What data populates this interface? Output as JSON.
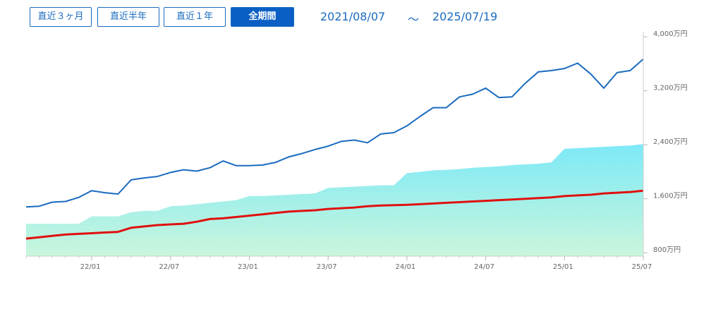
{
  "controls": {
    "buttons": [
      "直近３ヶ月",
      "直近半年",
      "直近１年",
      "全期間"
    ],
    "active": 3,
    "date_from": "2021/08/07",
    "separator": "～",
    "date_to": "2025/07/19"
  },
  "chart_data": {
    "type": "line",
    "x": [
      "21/08",
      "21/09",
      "21/10",
      "21/11",
      "21/12",
      "22/01",
      "22/02",
      "22/03",
      "22/04",
      "22/05",
      "22/06",
      "22/07",
      "22/08",
      "22/09",
      "22/10",
      "22/11",
      "22/12",
      "23/01",
      "23/02",
      "23/03",
      "23/04",
      "23/05",
      "23/06",
      "23/07",
      "23/08",
      "23/09",
      "23/10",
      "23/11",
      "23/12",
      "24/01",
      "24/02",
      "24/03",
      "24/04",
      "24/05",
      "24/06",
      "24/07",
      "24/08",
      "24/09",
      "24/10",
      "24/11",
      "24/12",
      "25/01",
      "25/02",
      "25/03",
      "25/04",
      "25/05",
      "25/06",
      "25/07"
    ],
    "series": [
      {
        "color": "#7de9f7",
        "area": true,
        "area_bottom_color": "#c9f6dc",
        "values": [
          1230,
          1230,
          1230,
          1230,
          1230,
          1340,
          1340,
          1340,
          1400,
          1420,
          1420,
          1490,
          1500,
          1520,
          1540,
          1560,
          1580,
          1640,
          1640,
          1650,
          1660,
          1670,
          1680,
          1760,
          1770,
          1780,
          1790,
          1800,
          1800,
          1980,
          2000,
          2020,
          2030,
          2040,
          2060,
          2070,
          2080,
          2100,
          2110,
          2120,
          2140,
          2340,
          2350,
          2360,
          2370,
          2380,
          2390,
          2410
        ]
      },
      {
        "color": "#e0100f",
        "values": [
          1010,
          1030,
          1050,
          1070,
          1080,
          1090,
          1100,
          1110,
          1170,
          1190,
          1210,
          1220,
          1230,
          1260,
          1300,
          1310,
          1330,
          1350,
          1370,
          1390,
          1410,
          1420,
          1430,
          1450,
          1460,
          1470,
          1490,
          1500,
          1505,
          1510,
          1520,
          1530,
          1540,
          1550,
          1560,
          1570,
          1580,
          1590,
          1600,
          1610,
          1620,
          1640,
          1650,
          1660,
          1680,
          1690,
          1700,
          1720
        ]
      },
      {
        "color": "#1a6bbf",
        "values": [
          1480,
          1490,
          1550,
          1560,
          1620,
          1720,
          1690,
          1670,
          1880,
          1910,
          1930,
          1990,
          2030,
          2010,
          2060,
          2160,
          2090,
          2090,
          2100,
          2140,
          2220,
          2270,
          2330,
          2380,
          2450,
          2470,
          2430,
          2560,
          2580,
          2680,
          2820,
          2950,
          2950,
          3110,
          3150,
          3240,
          3100,
          3110,
          3310,
          3480,
          3500,
          3530,
          3610,
          3450,
          3240,
          3470,
          3500,
          3670
        ]
      }
    ],
    "xlim": [
      "21/08",
      "25/07"
    ],
    "xticks": [
      "22/01",
      "22/07",
      "23/01",
      "23/07",
      "24/01",
      "24/07",
      "25/01",
      "25/07"
    ],
    "ylim": [
      750,
      4075
    ],
    "yticks": [
      {
        "value": 800,
        "label": "800万円"
      },
      {
        "value": 1600,
        "label": "1,600万円"
      },
      {
        "value": 2400,
        "label": "2,400万円"
      },
      {
        "value": 3200,
        "label": "3,200万円"
      },
      {
        "value": 4000,
        "label": "4,000万円"
      }
    ]
  }
}
